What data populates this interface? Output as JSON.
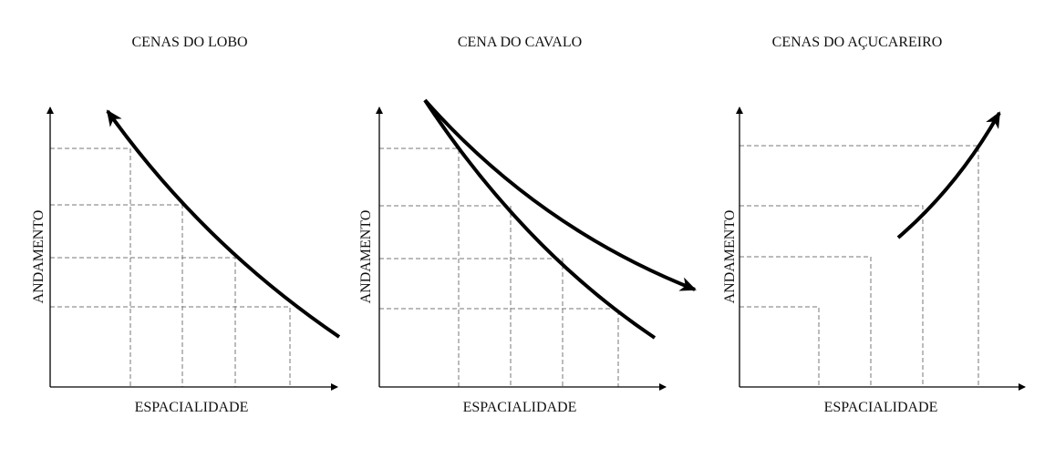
{
  "panels": [
    {
      "title": "CENAS DO LOBO",
      "x_label": "ESPACIALIDADE",
      "y_label": "ANDAMENTO"
    },
    {
      "title": "CENA DO CAVALO",
      "x_label": "ESPACIALIDADE",
      "y_label": "ANDAMENTO"
    },
    {
      "title": "CENAS DO AÇUCAREIRO",
      "x_label": "ESPACIALIDADE",
      "y_label": "ANDAMENTO"
    }
  ]
}
